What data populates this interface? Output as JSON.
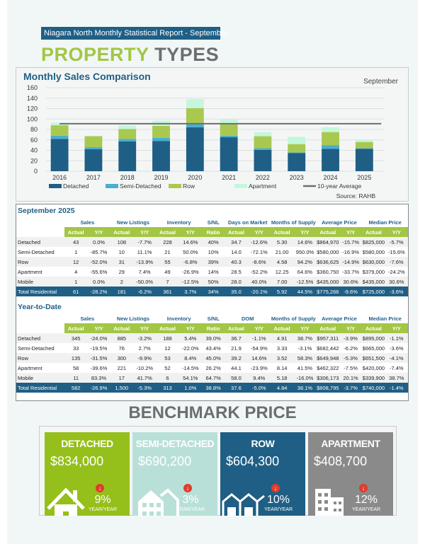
{
  "report_title": "Niagara North Monthly Statistical Report - September",
  "page_title": {
    "part1": "PROPERTY",
    "part2": "TYPES"
  },
  "chart_data": {
    "type": "bar",
    "stacked": true,
    "title": "Monthly Sales Comparison",
    "month_label": "September",
    "source": "Source: RAHB",
    "categories": [
      "2016",
      "2017",
      "2018",
      "2019",
      "2020",
      "2021",
      "2022",
      "2023",
      "2024",
      "2025"
    ],
    "ylim": [
      0,
      160
    ],
    "yticks": [
      0,
      20,
      40,
      60,
      80,
      100,
      120,
      140,
      160
    ],
    "grid": true,
    "legend": "bottom",
    "series": [
      {
        "name": "Detached",
        "color": "#1f5f85",
        "values": [
          62,
          42,
          57,
          58,
          84,
          65,
          41,
          35,
          43,
          43
        ]
      },
      {
        "name": "Semi-Detached",
        "color": "#4aaed0",
        "values": [
          6,
          4,
          5,
          6,
          6,
          3,
          3,
          1,
          7,
          1
        ]
      },
      {
        "name": "Row",
        "color": "#a9c84f",
        "values": [
          20,
          21,
          19,
          23,
          31,
          24,
          23,
          16,
          25,
          12
        ]
      },
      {
        "name": "Apartment",
        "color": "#c4f7dc",
        "values": [
          5,
          1,
          7,
          10,
          17,
          7,
          8,
          14,
          9,
          4
        ]
      }
    ],
    "line": {
      "name": "10-year Average",
      "color": "#6d6e70",
      "value": 91
    }
  },
  "monthly": {
    "title": "September 2025",
    "groups": [
      "Sales",
      "New Listings",
      "Inventory",
      "S/NL",
      "Days on Market",
      "Months of Supply",
      "Average Price",
      "Median Price"
    ],
    "subheaders": [
      "Actual",
      "Y/Y",
      "Actual",
      "Y/Y",
      "Actual",
      "Y/Y",
      "Ratio",
      "Actual",
      "Y/Y",
      "Actual",
      "Y/Y",
      "Actual",
      "Y/Y",
      "Actual",
      "Y/Y"
    ],
    "rows": [
      [
        "Detached",
        "43",
        "0.0%",
        "108",
        "-7.7%",
        "228",
        "14.6%",
        "40%",
        "34.7",
        "-12.6%",
        "5.30",
        "14.6%",
        "$864,970",
        "-15.7%",
        "$825,000",
        "-5.7%"
      ],
      [
        "Semi-Detached",
        "1",
        "-85.7%",
        "10",
        "11.1%",
        "21",
        "50.0%",
        "10%",
        "14.0",
        "-72.1%",
        "21.00",
        "950.0%",
        "$580,000",
        "-16.9%",
        "$580,000",
        "-15.6%"
      ],
      [
        "Row",
        "12",
        "-52.0%",
        "31",
        "-13.9%",
        "55",
        "-6.8%",
        "39%",
        "40.3",
        "-8.6%",
        "4.58",
        "94.2%",
        "$636,625",
        "-14.9%",
        "$630,000",
        "-7.6%"
      ],
      [
        "Apartment",
        "4",
        "-55.6%",
        "29",
        "7.4%",
        "49",
        "-26.9%",
        "14%",
        "28.5",
        "-52.2%",
        "12.25",
        "64.6%",
        "$360,750",
        "-33.7%",
        "$379,000",
        "-24.2%"
      ],
      [
        "Mobile",
        "1",
        "0.0%",
        "2",
        "-50.0%",
        "7",
        "-12.5%",
        "50%",
        "28.0",
        "40.0%",
        "7.00",
        "-12.5%",
        "$435,000",
        "30.6%",
        "$435,000",
        "30.6%"
      ],
      [
        "Total Residential",
        "61",
        "-28.2%",
        "181",
        "-6.2%",
        "361",
        "3.7%",
        "34%",
        "35.0",
        "-20.1%",
        "5.92",
        "44.5%",
        "$775,266",
        "-9.6%",
        "$725,000",
        "-3.6%"
      ]
    ]
  },
  "ytd": {
    "title": "Year-to-Date",
    "groups": [
      "Sales",
      "New Listings",
      "Inventory",
      "S/NL",
      "DOM",
      "Months of Supply",
      "Average Price",
      "Median Price"
    ],
    "subheaders": [
      "Actual",
      "Y/Y",
      "Actual",
      "Y/Y",
      "Actual",
      "Y/Y",
      "Ratio",
      "Actual",
      "Y/Y",
      "Actual",
      "Y/Y",
      "Actual",
      "Y/Y",
      "Actual",
      "Y/Y"
    ],
    "rows": [
      [
        "Detached",
        "345",
        "-24.0%",
        "885",
        "-3.2%",
        "188",
        "5.4%",
        "39.0%",
        "36.7",
        "-1.1%",
        "4.91",
        "38.7%",
        "$957,311",
        "-3.9%",
        "$895,000",
        "-1.1%"
      ],
      [
        "Semi-Detached",
        "33",
        "-19.5%",
        "76",
        "2.7%",
        "12",
        "-22.0%",
        "43.4%",
        "21.9",
        "-54.9%",
        "3.33",
        "-3.1%",
        "$682,442",
        "-6.2%",
        "$665,000",
        "-3.6%"
      ],
      [
        "Row",
        "135",
        "-31.5%",
        "300",
        "-9.9%",
        "53",
        "8.4%",
        "45.0%",
        "39.2",
        "14.6%",
        "3.52",
        "58.3%",
        "$649,948",
        "-5.3%",
        "$651,500",
        "-4.1%"
      ],
      [
        "Apartment",
        "58",
        "-39.6%",
        "221",
        "-10.2%",
        "52",
        "-14.5%",
        "26.2%",
        "44.1",
        "-23.9%",
        "8.14",
        "41.5%",
        "$462,322",
        "-7.5%",
        "$420,000",
        "-7.4%"
      ],
      [
        "Mobile",
        "11",
        "83.3%",
        "17",
        "41.7%",
        "6",
        "54.1%",
        "64.7%",
        "58.0",
        "9.4%",
        "5.18",
        "-16.0%",
        "$306,173",
        "20.1%",
        "$339,900",
        "38.7%"
      ],
      [
        "Total Residential",
        "582",
        "-26.9%",
        "1,500",
        "-5.3%",
        "313",
        "1.0%",
        "38.8%",
        "37.6",
        "-5.0%",
        "4.84",
        "38.1%",
        "$808,795",
        "-3.7%",
        "$740,000",
        "-1.4%"
      ]
    ]
  },
  "benchmark": {
    "title": "BENCHMARK PRICE",
    "cards": [
      {
        "name": "DETACHED",
        "price": "$834,000",
        "change": "9%",
        "period": "YEAR/YEAR",
        "direction": "down",
        "color": "#95bf1a",
        "icon": "house-icon"
      },
      {
        "name": "SEMI-DETACHED",
        "price": "$690,200",
        "change": "3%",
        "period": "YEAR/YEAR",
        "direction": "down",
        "color": "#b8e0d8",
        "icon": "semi-detached-icon"
      },
      {
        "name": "ROW",
        "price": "$604,300",
        "change": "10%",
        "period": "YEAR/YEAR",
        "direction": "down",
        "color": "#1f5f85",
        "icon": "row-houses-icon"
      },
      {
        "name": "APARTMENT",
        "price": "$408,700",
        "change": "12%",
        "period": "YEAR/YEAR",
        "direction": "down",
        "color": "#8a8a8a",
        "icon": "apartment-icon"
      }
    ]
  }
}
